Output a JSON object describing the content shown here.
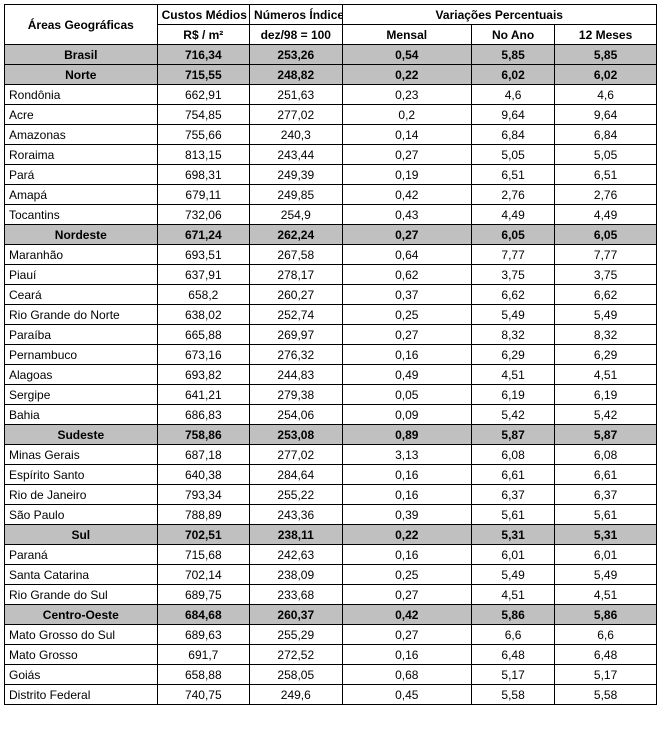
{
  "headers": {
    "area": "Áreas Geográficas",
    "custos": "Custos Médios",
    "indices": "Números Índices",
    "variacoes": "Variações Percentuais",
    "rs_m2": "R$ / m²",
    "dez98": "dez/98 = 100",
    "mensal": "Mensal",
    "no_ano": "No Ano",
    "meses12": "12 Meses",
    "colwidths": {
      "area": 132,
      "custos": 80,
      "indice": 80,
      "mensal": 112,
      "noano": 72,
      "m12": 88
    },
    "font_size": 12,
    "font_family": "Arial",
    "border_color": "#000000",
    "highlight_bg": "#c0c0c0",
    "background_color": "#ffffff"
  },
  "rows": [
    {
      "b": true,
      "r": "Brasil",
      "c": "716,34",
      "i": "253,26",
      "m": "0,54",
      "a": "5,85",
      "y": "5,85"
    },
    {
      "b": true,
      "r": "Norte",
      "c": "715,55",
      "i": "248,82",
      "m": "0,22",
      "a": "6,02",
      "y": "6,02"
    },
    {
      "b": false,
      "r": "Rondônia",
      "c": "662,91",
      "i": "251,63",
      "m": "0,23",
      "a": "4,6",
      "y": "4,6"
    },
    {
      "b": false,
      "r": "Acre",
      "c": "754,85",
      "i": "277,02",
      "m": "0,2",
      "a": "9,64",
      "y": "9,64"
    },
    {
      "b": false,
      "r": "Amazonas",
      "c": "755,66",
      "i": "240,3",
      "m": "0,14",
      "a": "6,84",
      "y": "6,84"
    },
    {
      "b": false,
      "r": "Roraima",
      "c": "813,15",
      "i": "243,44",
      "m": "0,27",
      "a": "5,05",
      "y": "5,05"
    },
    {
      "b": false,
      "r": "Pará",
      "c": "698,31",
      "i": "249,39",
      "m": "0,19",
      "a": "6,51",
      "y": "6,51"
    },
    {
      "b": false,
      "r": "Amapá",
      "c": "679,11",
      "i": "249,85",
      "m": "0,42",
      "a": "2,76",
      "y": "2,76"
    },
    {
      "b": false,
      "r": "Tocantins",
      "c": "732,06",
      "i": "254,9",
      "m": "0,43",
      "a": "4,49",
      "y": "4,49"
    },
    {
      "b": true,
      "r": "Nordeste",
      "c": "671,24",
      "i": "262,24",
      "m": "0,27",
      "a": "6,05",
      "y": "6,05"
    },
    {
      "b": false,
      "r": "Maranhão",
      "c": "693,51",
      "i": "267,58",
      "m": "0,64",
      "a": "7,77",
      "y": "7,77"
    },
    {
      "b": false,
      "r": "Piauí",
      "c": "637,91",
      "i": "278,17",
      "m": "0,62",
      "a": "3,75",
      "y": "3,75"
    },
    {
      "b": false,
      "r": "Ceará",
      "c": "658,2",
      "i": "260,27",
      "m": "0,37",
      "a": "6,62",
      "y": "6,62"
    },
    {
      "b": false,
      "r": "Rio Grande do Norte",
      "c": "638,02",
      "i": "252,74",
      "m": "0,25",
      "a": "5,49",
      "y": "5,49"
    },
    {
      "b": false,
      "r": "Paraíba",
      "c": "665,88",
      "i": "269,97",
      "m": "0,27",
      "a": "8,32",
      "y": "8,32"
    },
    {
      "b": false,
      "r": "Pernambuco",
      "c": "673,16",
      "i": "276,32",
      "m": "0,16",
      "a": "6,29",
      "y": "6,29"
    },
    {
      "b": false,
      "r": "Alagoas",
      "c": "693,82",
      "i": "244,83",
      "m": "0,49",
      "a": "4,51",
      "y": "4,51"
    },
    {
      "b": false,
      "r": "Sergipe",
      "c": "641,21",
      "i": "279,38",
      "m": "0,05",
      "a": "6,19",
      "y": "6,19"
    },
    {
      "b": false,
      "r": "Bahia",
      "c": "686,83",
      "i": "254,06",
      "m": "0,09",
      "a": "5,42",
      "y": "5,42"
    },
    {
      "b": true,
      "r": "Sudeste",
      "c": "758,86",
      "i": "253,08",
      "m": "0,89",
      "a": "5,87",
      "y": "5,87"
    },
    {
      "b": false,
      "r": "Minas Gerais",
      "c": "687,18",
      "i": "277,02",
      "m": "3,13",
      "a": "6,08",
      "y": "6,08"
    },
    {
      "b": false,
      "r": "Espírito Santo",
      "c": "640,38",
      "i": "284,64",
      "m": "0,16",
      "a": "6,61",
      "y": "6,61"
    },
    {
      "b": false,
      "r": "Rio de Janeiro",
      "c": "793,34",
      "i": "255,22",
      "m": "0,16",
      "a": "6,37",
      "y": "6,37"
    },
    {
      "b": false,
      "r": "São Paulo",
      "c": "788,89",
      "i": "243,36",
      "m": "0,39",
      "a": "5,61",
      "y": "5,61"
    },
    {
      "b": true,
      "r": "Sul",
      "c": "702,51",
      "i": "238,11",
      "m": "0,22",
      "a": "5,31",
      "y": "5,31"
    },
    {
      "b": false,
      "r": "Paraná",
      "c": "715,68",
      "i": "242,63",
      "m": "0,16",
      "a": "6,01",
      "y": "6,01"
    },
    {
      "b": false,
      "r": "Santa Catarina",
      "c": "702,14",
      "i": "238,09",
      "m": "0,25",
      "a": "5,49",
      "y": "5,49"
    },
    {
      "b": false,
      "r": "Rio Grande do Sul",
      "c": "689,75",
      "i": "233,68",
      "m": "0,27",
      "a": "4,51",
      "y": "4,51"
    },
    {
      "b": true,
      "r": "Centro-Oeste",
      "c": "684,68",
      "i": "260,37",
      "m": "0,42",
      "a": "5,86",
      "y": "5,86"
    },
    {
      "b": false,
      "r": "Mato Grosso do Sul",
      "c": "689,63",
      "i": "255,29",
      "m": "0,27",
      "a": "6,6",
      "y": "6,6"
    },
    {
      "b": false,
      "r": "Mato Grosso",
      "c": "691,7",
      "i": "272,52",
      "m": "0,16",
      "a": "6,48",
      "y": "6,48"
    },
    {
      "b": false,
      "r": "Goiás",
      "c": "658,88",
      "i": "258,05",
      "m": "0,68",
      "a": "5,17",
      "y": "5,17"
    },
    {
      "b": false,
      "r": "Distrito Federal",
      "c": "740,75",
      "i": "249,6",
      "m": "0,45",
      "a": "5,58",
      "y": "5,58"
    }
  ]
}
